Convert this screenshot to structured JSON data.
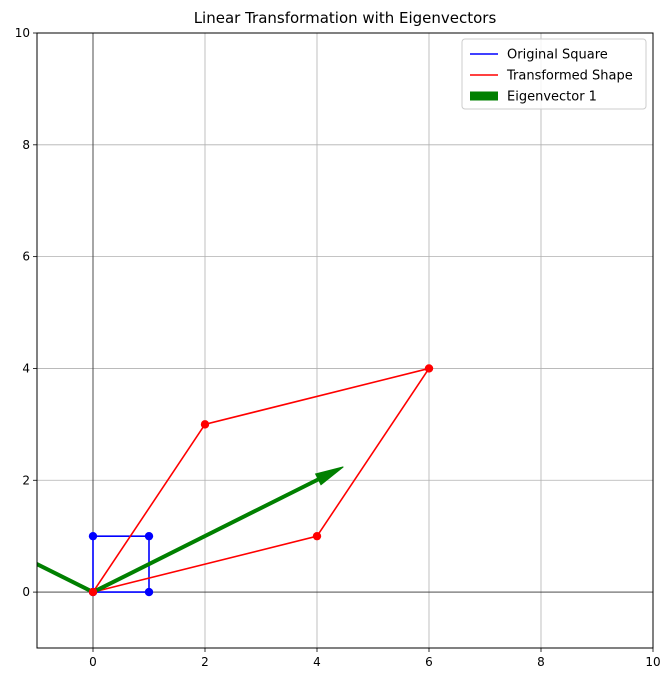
{
  "chart_data": {
    "type": "line",
    "title": "Linear Transformation with Eigenvectors",
    "xlabel": "",
    "ylabel": "",
    "xlim": [
      -1,
      10
    ],
    "ylim": [
      -1,
      10
    ],
    "xticks": [
      0,
      2,
      4,
      6,
      8,
      10
    ],
    "yticks": [
      0,
      2,
      4,
      6,
      8,
      10
    ],
    "tick_labels_x": [
      "0",
      "2",
      "4",
      "6",
      "8",
      "10"
    ],
    "tick_labels_y": [
      "0",
      "2",
      "4",
      "6",
      "8",
      "10"
    ],
    "grid": true,
    "axis_lines_at_zero": true,
    "legend_position": "top-right",
    "series": [
      {
        "name": "Original Square",
        "kind": "line",
        "color": "#0000ff",
        "x": [
          0,
          1,
          1,
          0,
          0
        ],
        "y": [
          0,
          0,
          1,
          1,
          0
        ]
      },
      {
        "name": "Transformed Shape",
        "kind": "line",
        "color": "#ff0000",
        "x": [
          0,
          4,
          6,
          2,
          0
        ],
        "y": [
          0,
          1,
          4,
          3,
          0
        ]
      },
      {
        "name": "Eigenvector 1",
        "kind": "arrow",
        "color": "#008000",
        "x": [
          0,
          4.47
        ],
        "y": [
          0,
          2.24
        ]
      }
    ],
    "extra_segments": [
      {
        "color": "#008000",
        "x": [
          0,
          -1.9
        ],
        "y": [
          0,
          0.95
        ]
      }
    ],
    "markers": [
      {
        "color": "#0000ff",
        "x": [
          0,
          1,
          1,
          0
        ],
        "y": [
          0,
          0,
          1,
          1
        ]
      },
      {
        "color": "#ff0000",
        "x": [
          0,
          4,
          6,
          2
        ],
        "y": [
          0,
          1,
          4,
          3
        ]
      }
    ]
  }
}
